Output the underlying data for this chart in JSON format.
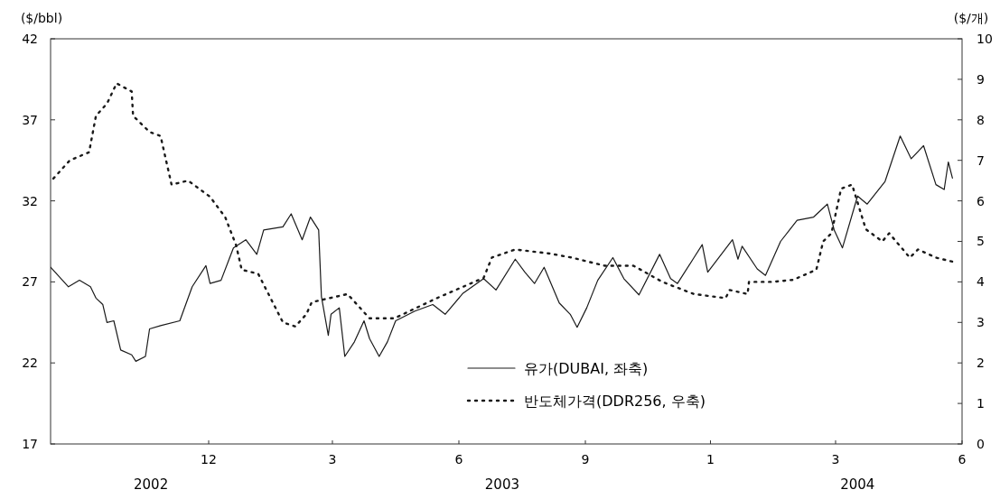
{
  "chart_data": {
    "type": "line",
    "ylabel": "($/bbl)",
    "y2label": "($/개)",
    "xlim": [
      "2002-08-08",
      "2004-06-01"
    ],
    "xticks": [
      {
        "value": "2002-12",
        "label": "12"
      },
      {
        "value": "2003-03",
        "label": "3"
      },
      {
        "value": "2003-06",
        "label": "6"
      },
      {
        "value": "2003-09",
        "label": "9"
      },
      {
        "value": "2003-12",
        "label": "1"
      },
      {
        "value": "2004-03",
        "label": "3"
      },
      {
        "value": "2004-06",
        "label": "6"
      }
    ],
    "ylim": [
      17,
      42
    ],
    "yticks": [
      17,
      22,
      27,
      32,
      37,
      42
    ],
    "y2lim": [
      0,
      10
    ],
    "y2ticks": [
      0,
      1,
      2,
      3,
      4,
      5,
      6,
      7,
      8,
      9,
      10
    ],
    "grid": false,
    "legend": "bottom",
    "marker": "none",
    "annotations": [
      "2002",
      "2003",
      "2004"
    ],
    "series": [
      {
        "name": "유가(DUBAI, 좌축)",
        "color": "#1a1a1a",
        "line_style": "solid",
        "x": [
          "2002-08-08",
          "2002-08-21",
          "2002-08-29",
          "2002-09-06",
          "2002-09-10",
          "2002-09-15",
          "2002-09-18",
          "2002-09-23",
          "2002-09-28",
          "2002-10-06",
          "2002-10-09",
          "2002-10-16",
          "2002-10-19",
          "2002-10-27",
          "2002-11-10",
          "2002-11-19",
          "2002-11-29",
          "2002-12-02",
          "2002-12-10",
          "2002-12-19",
          "2002-12-28",
          "2003-01-05",
          "2003-01-10",
          "2003-01-24",
          "2003-01-30",
          "2003-02-07",
          "2003-02-13",
          "2003-02-19",
          "2003-02-21",
          "2003-02-26",
          "2003-02-28",
          "2003-03-06",
          "2003-03-10",
          "2003-03-17",
          "2003-03-24",
          "2003-03-28",
          "2003-04-04",
          "2003-04-10",
          "2003-04-16",
          "2003-04-30",
          "2003-05-13",
          "2003-05-22",
          "2003-06-04",
          "2003-06-19",
          "2003-06-28",
          "2003-07-12",
          "2003-07-19",
          "2003-07-26",
          "2003-08-02",
          "2003-08-13",
          "2003-08-21",
          "2003-08-26",
          "2003-09-02",
          "2003-09-10",
          "2003-09-21",
          "2003-09-29",
          "2003-10-10",
          "2003-10-25",
          "2003-11-02",
          "2003-11-07",
          "2003-11-19",
          "2003-11-25",
          "2003-11-29",
          "2003-12-17",
          "2003-12-21",
          "2003-12-24",
          "2004-01-04",
          "2004-01-10",
          "2004-01-21",
          "2004-02-02",
          "2004-02-14",
          "2004-02-24",
          "2004-02-29",
          "2004-03-06",
          "2004-03-17",
          "2004-03-24",
          "2004-04-06",
          "2004-04-17",
          "2004-04-25",
          "2004-05-04",
          "2004-05-13",
          "2004-05-19",
          "2004-05-22",
          "2004-05-25"
        ],
        "values": [
          27.9,
          26.7,
          27.1,
          26.7,
          26.0,
          25.6,
          24.5,
          24.6,
          22.8,
          22.5,
          22.1,
          22.4,
          24.1,
          24.3,
          24.6,
          26.7,
          28.0,
          26.9,
          27.1,
          29.1,
          29.6,
          28.7,
          30.2,
          30.4,
          31.2,
          29.6,
          31.0,
          30.2,
          26.1,
          23.7,
          25.0,
          25.4,
          22.4,
          23.3,
          24.6,
          23.5,
          22.4,
          23.3,
          24.6,
          25.2,
          25.6,
          25.0,
          26.3,
          27.2,
          26.5,
          28.4,
          27.6,
          26.9,
          27.9,
          25.7,
          25.0,
          24.2,
          25.4,
          27.1,
          28.5,
          27.2,
          26.2,
          28.7,
          27.2,
          26.9,
          28.5,
          29.3,
          27.6,
          29.6,
          28.4,
          29.2,
          27.8,
          27.4,
          29.5,
          30.8,
          31.0,
          31.8,
          30.2,
          29.1,
          32.3,
          31.8,
          33.2,
          36.0,
          34.6,
          35.4,
          33.0,
          32.7,
          34.4,
          33.4
        ]
      },
      {
        "name": "반도체가격(DDR256, 우축)",
        "color": "#1a1a1a",
        "line_style": "dotted",
        "axis": "y2",
        "x": [
          "2002-08-10",
          "2002-08-22",
          "2002-09-05",
          "2002-09-10",
          "2002-09-18",
          "2002-09-25",
          "2002-10-06",
          "2002-10-07",
          "2002-10-19",
          "2002-10-27",
          "2002-11-04",
          "2002-11-16",
          "2002-12-02",
          "2002-12-13",
          "2002-12-21",
          "2002-12-25",
          "2003-01-06",
          "2003-01-15",
          "2003-01-24",
          "2003-02-02",
          "2003-02-10",
          "2003-02-14",
          "2003-03-12",
          "2003-03-28",
          "2003-04-15",
          "2003-05-16",
          "2003-06-19",
          "2003-06-25",
          "2003-07-12",
          "2003-08-06",
          "2003-08-22",
          "2003-09-15",
          "2003-10-06",
          "2003-10-27",
          "2003-11-19",
          "2003-12-12",
          "2003-12-15",
          "2003-12-28",
          "2003-12-29",
          "2004-01-15",
          "2004-01-30",
          "2004-02-16",
          "2004-02-21",
          "2004-02-27",
          "2004-03-05",
          "2004-03-13",
          "2004-03-23",
          "2004-04-04",
          "2004-04-09",
          "2004-04-24",
          "2004-04-30",
          "2004-05-13",
          "2004-05-25"
        ],
        "values": [
          6.55,
          7.0,
          7.2,
          8.1,
          8.4,
          8.9,
          8.7,
          8.1,
          7.7,
          7.6,
          6.4,
          6.5,
          6.1,
          5.6,
          4.9,
          4.3,
          4.2,
          3.6,
          3.0,
          2.9,
          3.2,
          3.5,
          3.7,
          3.1,
          3.1,
          3.6,
          4.1,
          4.6,
          4.8,
          4.7,
          4.6,
          4.4,
          4.4,
          4.0,
          3.7,
          3.6,
          3.8,
          3.7,
          4.0,
          4.0,
          4.05,
          4.3,
          5.0,
          5.2,
          6.3,
          6.4,
          5.3,
          5.0,
          5.2,
          4.6,
          4.8,
          4.6,
          4.5
        ]
      }
    ]
  }
}
